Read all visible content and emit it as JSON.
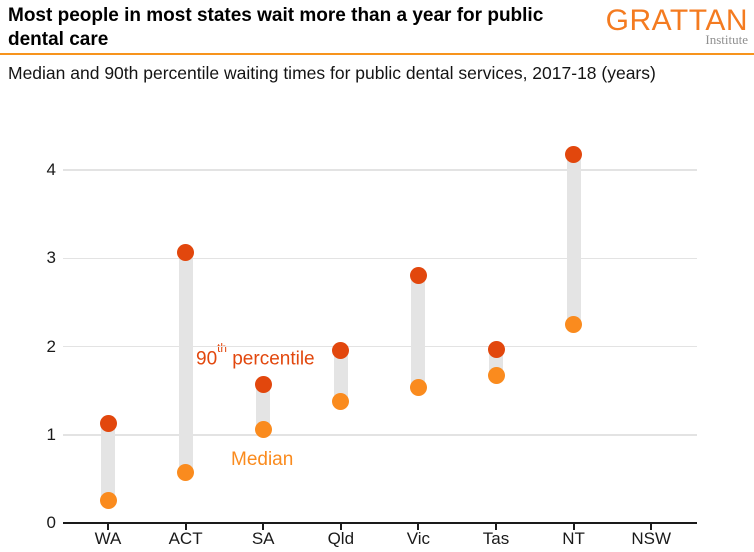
{
  "header": {
    "title": "Most people in most states wait more than a year for public dental care",
    "subtitle": "Median and 90th percentile waiting times for public dental services, 2017-18 (years)",
    "logo": {
      "name": "GRATTAN",
      "sub": "Institute"
    }
  },
  "colors": {
    "accent_orange": "#f7941d",
    "logo_orange": "#f47b20",
    "median": "#fa8b1e",
    "p90": "#e2470d",
    "bar": "#e4e4e4",
    "gridline": "#e3e3e3",
    "axis": "#1a1a1a"
  },
  "chart_data": {
    "type": "scatter",
    "subtype": "dumbbell-range",
    "title": "Most people in most states wait more than a year for public dental care",
    "subtitle": "Median and 90th percentile waiting times for public dental services, 2017-18 (years)",
    "xlabel": "",
    "ylabel": "",
    "categories": [
      "WA",
      "ACT",
      "SA",
      "Qld",
      "Vic",
      "Tas",
      "NT",
      "NSW"
    ],
    "series": [
      {
        "name": "Median",
        "values": [
          0.25,
          0.57,
          1.06,
          1.38,
          1.54,
          1.67,
          2.25,
          null
        ]
      },
      {
        "name": "90th percentile",
        "values": [
          1.13,
          3.06,
          1.57,
          1.95,
          2.81,
          1.97,
          4.17,
          null
        ]
      }
    ],
    "ylim": [
      0,
      4.3
    ],
    "yticks": [
      0,
      1,
      2,
      3,
      4
    ],
    "grid": "horizontal",
    "legend_position": "inline-annotations",
    "annotations": {
      "p90": {
        "pre": "90",
        "sup": "th",
        "post": " percentile"
      },
      "median": "Median"
    }
  }
}
